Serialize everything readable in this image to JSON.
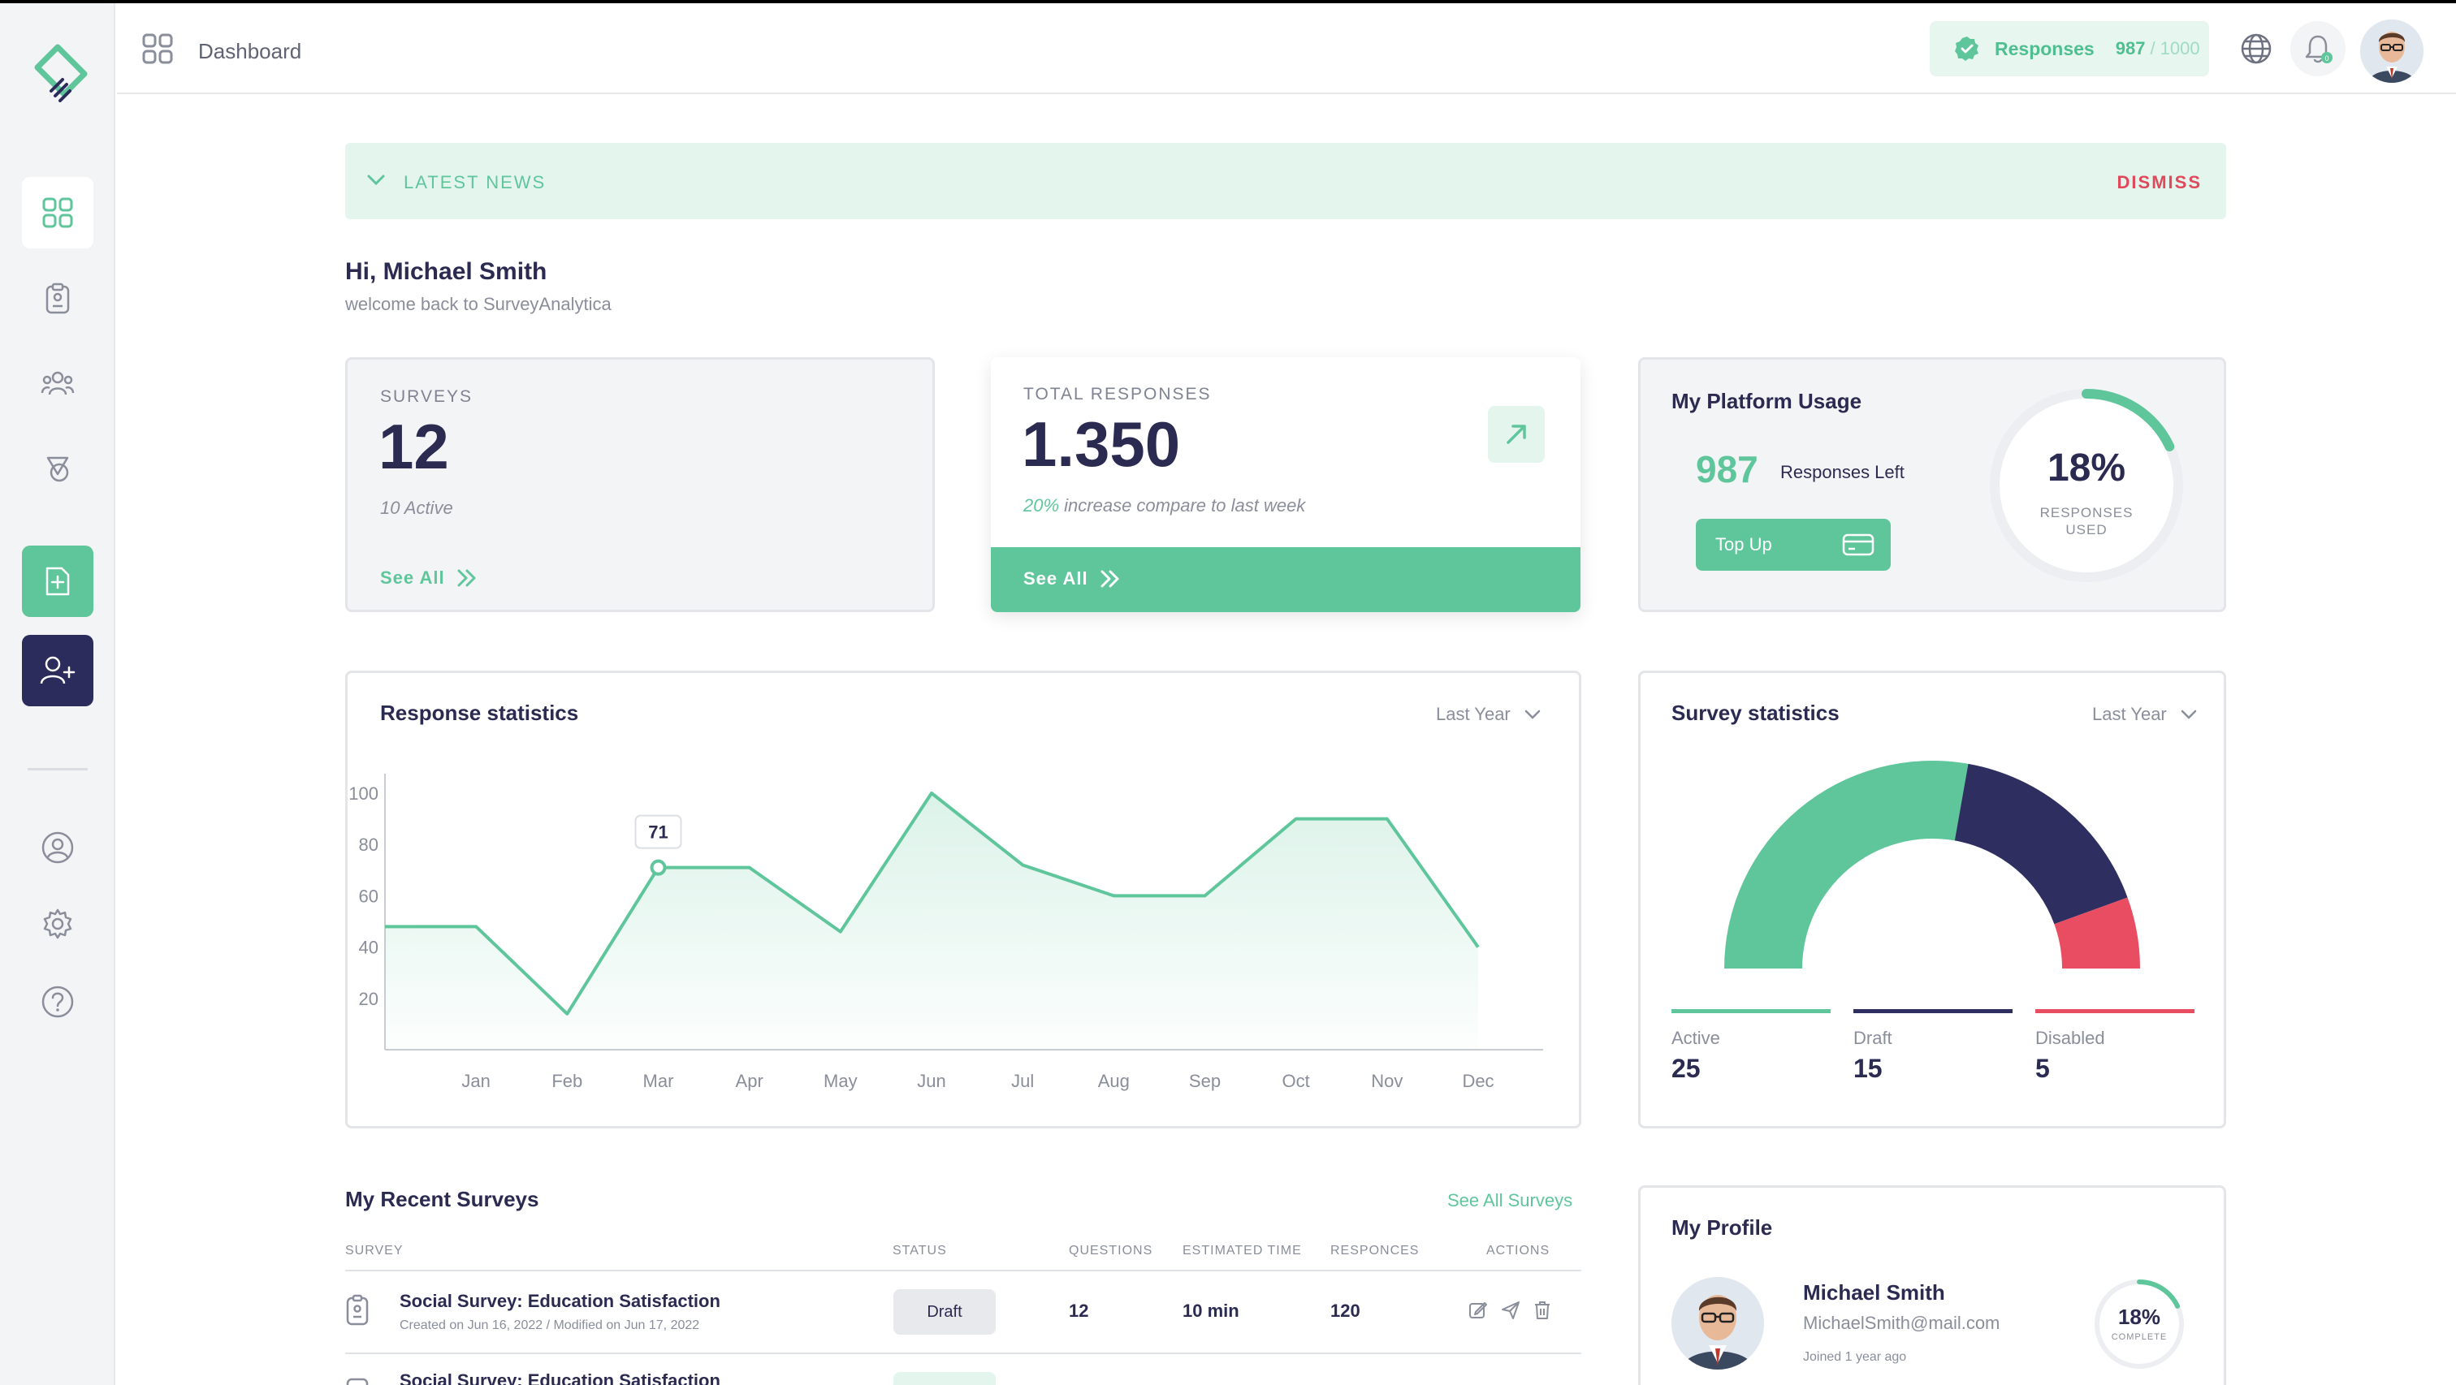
{
  "header": {
    "title": "Dashboard",
    "responses_label": "Responses",
    "responses_used": "987",
    "responses_total": "/ 1000",
    "notification_count": "0"
  },
  "news": {
    "label": "LATEST NEWS",
    "dismiss": "DISMISS"
  },
  "greeting": {
    "title": "Hi, Michael Smith",
    "subtitle": "welcome back to SurveyAnalytica"
  },
  "surveys_card": {
    "label": "SURVEYS",
    "value": "12",
    "sub": "10 Active",
    "see_all": "See All"
  },
  "responses_card": {
    "label": "TOTAL RESPONSES",
    "value": "1.350",
    "sub_pct": "20%",
    "sub_text": " increase compare to last week",
    "see_all": "See All"
  },
  "usage_card": {
    "title": "My Platform Usage",
    "left_value": "987",
    "left_label": "Responses Left",
    "topup": "Top Up",
    "pct": "18%",
    "pct_label": "RESPONSES USED",
    "pct_fraction": 0.18
  },
  "response_stats": {
    "title": "Response statistics",
    "period": "Last Year",
    "tooltip": "71"
  },
  "chart_data": [
    {
      "type": "area",
      "title": "Response statistics",
      "categories": [
        "Jan",
        "Feb",
        "Mar",
        "Apr",
        "May",
        "Jun",
        "Jul",
        "Aug",
        "Sep",
        "Oct",
        "Nov",
        "Dec"
      ],
      "x": [
        "",
        "Jan",
        "Feb",
        "Mar",
        "Apr",
        "May",
        "Jun",
        "Jul",
        "Aug",
        "Sep",
        "Oct",
        "Nov",
        "Dec"
      ],
      "values": [
        48,
        48,
        14,
        71,
        71,
        46,
        100,
        72,
        60,
        60,
        90,
        90,
        40
      ],
      "yticks": [
        20,
        40,
        60,
        80,
        100
      ],
      "ylim": [
        0,
        110
      ],
      "highlight_index": 3,
      "color": "#5fc69c"
    },
    {
      "type": "pie",
      "title": "Survey statistics",
      "labels": [
        "Active",
        "Draft",
        "Disabled"
      ],
      "values": [
        25,
        15,
        5
      ],
      "colors": [
        "#5fc69c",
        "#2e2e60",
        "#e94d62"
      ]
    }
  ],
  "survey_stats": {
    "title": "Survey statistics",
    "period": "Last Year",
    "legend": [
      {
        "label": "Active",
        "value": "25",
        "color": "#5fc69c"
      },
      {
        "label": "Draft",
        "value": "15",
        "color": "#2e2e60"
      },
      {
        "label": "Disabled",
        "value": "5",
        "color": "#e94d62"
      }
    ]
  },
  "recent": {
    "title": "My Recent Surveys",
    "see_all": "See All Surveys",
    "columns": [
      "SURVEY",
      "STATUS",
      "QUESTIONS",
      "ESTIMATED TIME",
      "RESPONCES",
      "ACTIONS"
    ],
    "rows": [
      {
        "title": "Social Survey: Education Satisfaction",
        "meta": "Created on Jun 16, 2022  /  Modified on Jun 17, 2022",
        "status": "Draft",
        "questions": "12",
        "time": "10 min",
        "responses": "120"
      },
      {
        "title": "Social Survey: Education Satisfaction"
      }
    ]
  },
  "profile": {
    "title": "My Profile",
    "name": "Michael Smith",
    "email": "MichaelSmith@mail.com",
    "joined": "Joined 1 year ago",
    "pct": "18%",
    "pct_label": "COMPLETE",
    "pct_fraction": 0.18
  },
  "colors": {
    "accent": "#5fc69c",
    "navy": "#2b2b52",
    "danger": "#e0495b"
  }
}
